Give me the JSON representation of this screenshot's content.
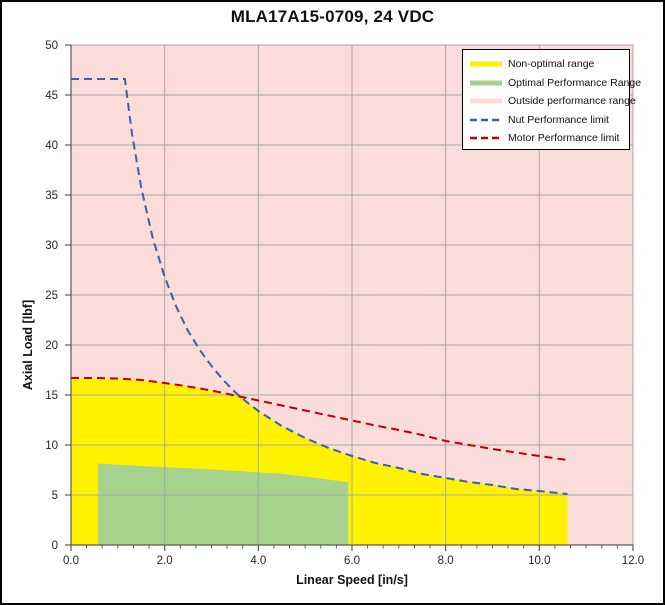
{
  "window": {
    "title": "MLA17A15-0709, 24 VDC"
  },
  "colors": {
    "non_optimal": "#FFF200",
    "optimal": "#A6D28E",
    "outside": "#FADCDB",
    "nut_limit": "#3E5FA8",
    "motor_limit": "#C00000",
    "gridline": "#A8A8A8",
    "axis": "#595959",
    "tick_text": "#262626",
    "legend_border": "#000000"
  },
  "legend": {
    "items": [
      {
        "label": "Non-optimal range",
        "swatch": "fill",
        "color_key": "non_optimal"
      },
      {
        "label": "Optimal Performance Range",
        "swatch": "fill",
        "color_key": "optimal"
      },
      {
        "label": "Outside performance range",
        "swatch": "fill",
        "color_key": "outside"
      },
      {
        "label": "Nut Performance limit",
        "swatch": "dash",
        "color_key": "nut_limit"
      },
      {
        "label": "Motor Performance limit",
        "swatch": "dash",
        "color_key": "motor_limit"
      }
    ]
  },
  "chart_data": {
    "type": "area",
    "title": "MLA17A15-0709, 24 VDC",
    "xlabel": "Linear Speed [in/s]",
    "ylabel": "Axial Load [lbf]",
    "xlim": [
      0,
      12
    ],
    "ylim": [
      0,
      50
    ],
    "x_ticks": [
      0,
      2,
      4,
      6,
      8,
      10,
      12
    ],
    "x_tick_labels": [
      "0.0",
      "2.0",
      "4.0",
      "6.0",
      "8.0",
      "10.0",
      "12.0"
    ],
    "y_ticks": [
      0,
      5,
      10,
      15,
      20,
      25,
      30,
      35,
      40,
      45,
      50
    ],
    "y_tick_labels": [
      "0",
      "5",
      "10",
      "15",
      "20",
      "25",
      "30",
      "35",
      "40",
      "45",
      "50"
    ],
    "x_minor_tick_step": 0.3333,
    "grid": true,
    "legend_position": "top-right",
    "series": [
      {
        "name": "Outside performance range",
        "type": "background",
        "color_key": "outside"
      },
      {
        "name": "Non-optimal range",
        "type": "area",
        "color_key": "non_optimal",
        "x_range": [
          0,
          10.6
        ],
        "baseline": 0,
        "upper_boundary": [
          [
            0,
            16.7
          ],
          [
            0.5,
            16.7
          ],
          [
            1,
            16.65
          ],
          [
            1.5,
            16.5
          ],
          [
            2,
            16.2
          ],
          [
            2.5,
            15.85
          ],
          [
            3,
            15.45
          ],
          [
            3.5,
            14.95
          ],
          [
            3.6,
            14.8
          ],
          [
            3.75,
            14.3
          ],
          [
            4,
            13.4
          ],
          [
            4.5,
            11.9
          ],
          [
            5,
            10.7
          ],
          [
            5.5,
            9.7
          ],
          [
            6,
            8.9
          ],
          [
            6.5,
            8.2
          ],
          [
            7,
            7.7
          ],
          [
            7.5,
            7.1
          ],
          [
            8,
            6.7
          ],
          [
            8.5,
            6.3
          ],
          [
            9,
            6.0
          ],
          [
            9.5,
            5.6
          ],
          [
            10,
            5.4
          ],
          [
            10.6,
            5.1
          ]
        ]
      },
      {
        "name": "Optimal Performance Range",
        "type": "area",
        "color_key": "optimal",
        "x_range": [
          0.58,
          5.92
        ],
        "baseline": 0,
        "upper_boundary": [
          [
            0.58,
            8.15
          ],
          [
            1.5,
            7.9
          ],
          [
            2.5,
            7.68
          ],
          [
            3.5,
            7.42
          ],
          [
            4.5,
            7.12
          ],
          [
            5,
            6.85
          ],
          [
            5.5,
            6.55
          ],
          [
            5.92,
            6.25
          ]
        ]
      },
      {
        "name": "Nut Performance limit",
        "type": "line",
        "dash": true,
        "color_key": "nut_limit",
        "points": [
          [
            0,
            46.6
          ],
          [
            1.15,
            46.6
          ],
          [
            1.3,
            41.2
          ],
          [
            1.5,
            35.7
          ],
          [
            1.75,
            30.6
          ],
          [
            2,
            26.8
          ],
          [
            2.25,
            23.8
          ],
          [
            2.5,
            21.4
          ],
          [
            2.75,
            19.5
          ],
          [
            3,
            17.9
          ],
          [
            3.25,
            16.5
          ],
          [
            3.5,
            15.3
          ],
          [
            3.75,
            14.3
          ],
          [
            4,
            13.4
          ],
          [
            4.5,
            11.9
          ],
          [
            5,
            10.7
          ],
          [
            5.5,
            9.7
          ],
          [
            6,
            8.9
          ],
          [
            6.5,
            8.2
          ],
          [
            7,
            7.7
          ],
          [
            7.5,
            7.1
          ],
          [
            8,
            6.7
          ],
          [
            8.5,
            6.3
          ],
          [
            9,
            6.0
          ],
          [
            9.5,
            5.6
          ],
          [
            10,
            5.4
          ],
          [
            10.6,
            5.1
          ]
        ]
      },
      {
        "name": "Motor Performance limit",
        "type": "line",
        "dash": true,
        "color_key": "motor_limit",
        "points": [
          [
            0,
            16.7
          ],
          [
            0.5,
            16.7
          ],
          [
            1,
            16.65
          ],
          [
            1.5,
            16.5
          ],
          [
            2,
            16.2
          ],
          [
            2.5,
            15.85
          ],
          [
            3,
            15.45
          ],
          [
            3.5,
            14.95
          ],
          [
            4,
            14.45
          ],
          [
            4.5,
            13.95
          ],
          [
            5,
            13.45
          ],
          [
            5.5,
            12.95
          ],
          [
            6,
            12.45
          ],
          [
            6.5,
            11.95
          ],
          [
            7,
            11.5
          ],
          [
            7.5,
            11.0
          ],
          [
            8,
            10.4
          ],
          [
            8.5,
            10.0
          ],
          [
            9,
            9.6
          ],
          [
            9.5,
            9.25
          ],
          [
            10,
            8.9
          ],
          [
            10.6,
            8.5
          ]
        ]
      }
    ]
  }
}
